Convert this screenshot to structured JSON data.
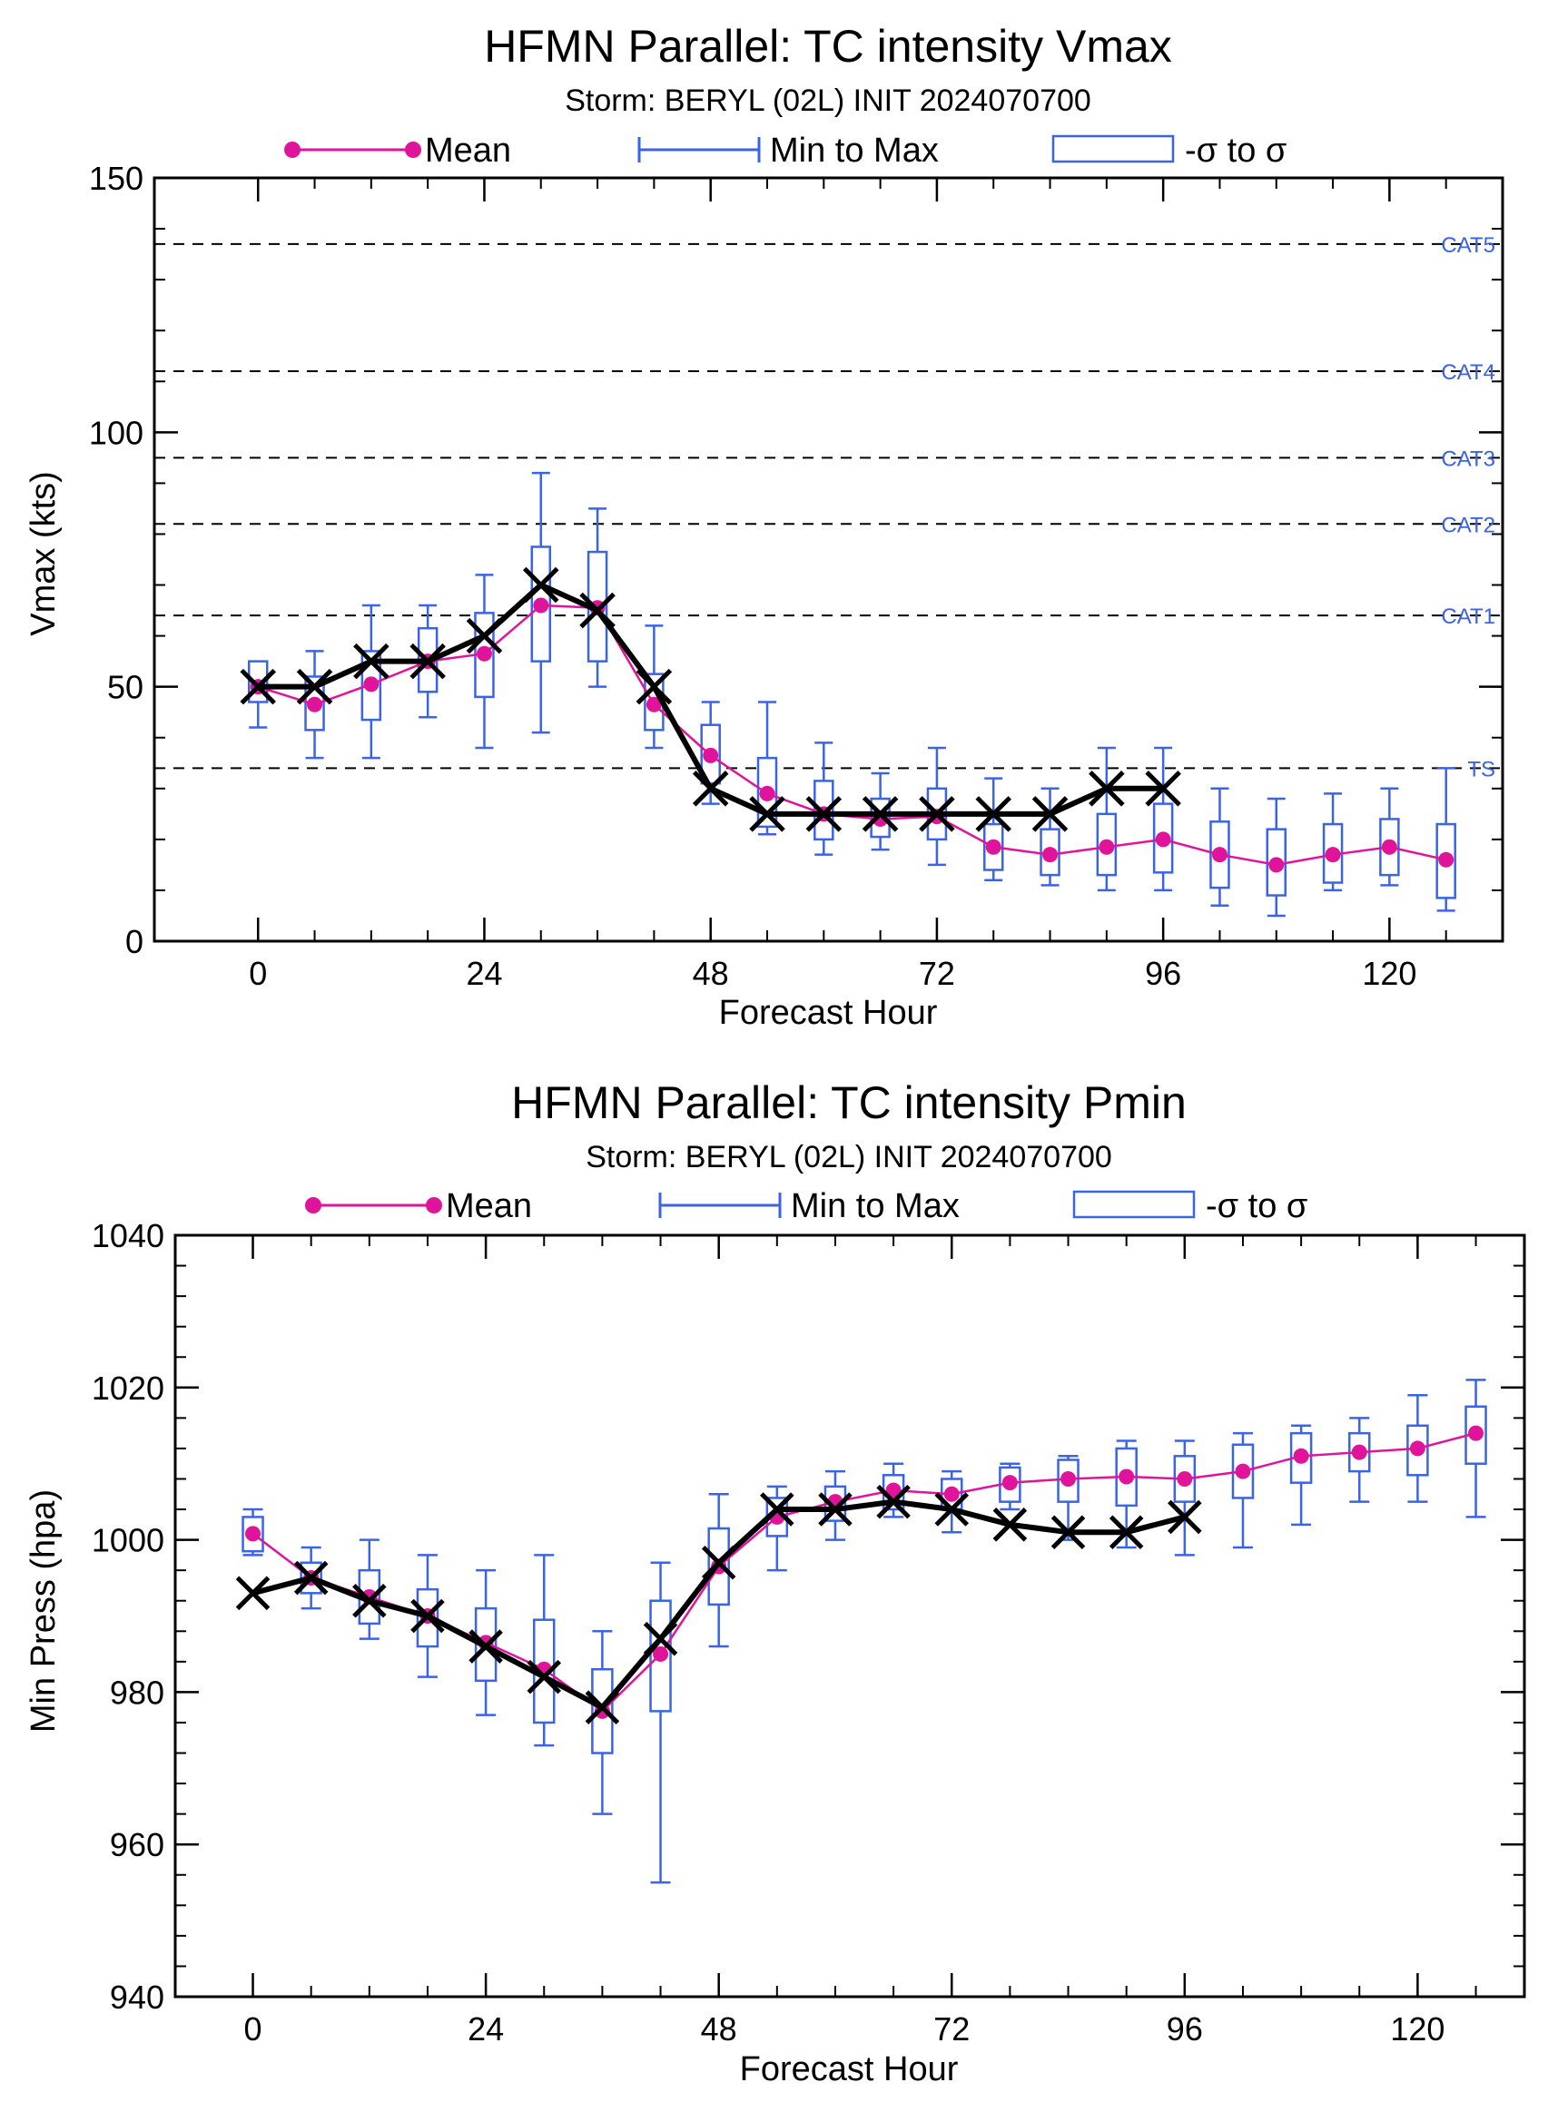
{
  "colors": {
    "mean": "#E0149B",
    "range": "#3B63E6",
    "best_track": "#000000",
    "cat_line": "#000000",
    "cat_label": "#3B63E6"
  },
  "legend": {
    "mean": "Mean",
    "minmax": "Min to Max",
    "sigma": "-σ to σ"
  },
  "chart_data": [
    {
      "type": "line",
      "title": "HFMN Parallel: TC intensity Vmax",
      "subtitle": "Storm: BERYL (02L) INIT 2024070700",
      "xlabel": "Forecast Hour",
      "ylabel": "Vmax (kts)",
      "xlim": [
        -11,
        132
      ],
      "ylim": [
        0,
        150
      ],
      "xticks": [
        0,
        24,
        48,
        72,
        96,
        120
      ],
      "yticks": [
        0,
        50,
        100,
        150
      ],
      "x_tick_labels": [
        "0",
        "24",
        "48",
        "72",
        "96",
        "120"
      ],
      "y_tick_labels": [
        "0",
        "50",
        "100",
        "150"
      ],
      "thresholds": [
        {
          "label": "TS",
          "value": 34
        },
        {
          "label": "CAT1",
          "value": 64
        },
        {
          "label": "CAT2",
          "value": 82
        },
        {
          "label": "CAT3",
          "value": 95
        },
        {
          "label": "CAT4",
          "value": 112
        },
        {
          "label": "CAT5",
          "value": 137
        }
      ],
      "x": [
        0,
        6,
        12,
        18,
        24,
        30,
        36,
        42,
        48,
        54,
        60,
        66,
        72,
        78,
        84,
        90,
        96,
        102,
        108,
        114,
        120,
        126
      ],
      "series": [
        {
          "name": "Mean",
          "values": [
            50,
            46.5,
            50.5,
            55,
            56.5,
            66,
            65.5,
            46.5,
            36.5,
            29,
            25,
            24,
            24.5,
            18.5,
            17,
            18.5,
            20,
            17,
            15,
            17,
            18.5,
            16
          ]
        },
        {
          "name": "Min to Max",
          "min": [
            42,
            36,
            36,
            44,
            38,
            41,
            50,
            38,
            27,
            21,
            17,
            18,
            15,
            12,
            11,
            10,
            10,
            7,
            5,
            10,
            11,
            6
          ],
          "max": [
            54,
            57,
            66,
            66,
            72,
            92,
            85,
            62,
            47,
            47,
            39,
            33,
            38,
            32,
            30,
            38,
            38,
            30,
            28,
            29,
            30,
            34
          ]
        },
        {
          "name": "-σ to σ",
          "low": [
            47,
            41.5,
            43.5,
            49,
            48,
            55,
            55,
            41.5,
            31,
            22.5,
            20,
            20.5,
            20,
            14,
            13,
            13,
            13.5,
            10.5,
            9,
            11.5,
            13,
            8.5
          ],
          "high": [
            55,
            52,
            57,
            61.5,
            64.5,
            77.5,
            76.5,
            52.5,
            42.5,
            36,
            31.5,
            28,
            30,
            23,
            22,
            25,
            27,
            23.5,
            22,
            23,
            24,
            23
          ]
        },
        {
          "name": "best_track",
          "values": [
            50,
            50,
            55,
            55,
            60,
            70,
            65,
            50,
            30,
            25,
            25,
            25,
            25,
            25,
            25,
            30,
            30,
            null,
            null,
            null,
            null,
            null
          ]
        }
      ]
    },
    {
      "type": "line",
      "title": "HFMN Parallel: TC intensity Pmin",
      "subtitle": "Storm: BERYL (02L) INIT 2024070700",
      "xlabel": "Forecast Hour",
      "ylabel": "Min Press (hpa)",
      "xlim": [
        -8,
        131
      ],
      "ylim": [
        940,
        1040
      ],
      "xticks": [
        0,
        24,
        48,
        72,
        96,
        120
      ],
      "yticks": [
        940,
        960,
        980,
        1000,
        1020,
        1040
      ],
      "x_tick_labels": [
        "0",
        "24",
        "48",
        "72",
        "96",
        "120"
      ],
      "y_tick_labels": [
        "940",
        "960",
        "980",
        "1000",
        "1020",
        "1040"
      ],
      "x": [
        0,
        6,
        12,
        18,
        24,
        30,
        36,
        42,
        48,
        54,
        60,
        66,
        72,
        78,
        84,
        90,
        96,
        102,
        108,
        114,
        120,
        126
      ],
      "series": [
        {
          "name": "Mean",
          "values": [
            1000.8,
            995,
            992.5,
            990,
            986.5,
            983,
            977.5,
            985,
            996.5,
            1003,
            1005,
            1006.5,
            1006,
            1007.5,
            1008,
            1008.3,
            1008,
            1009,
            1011,
            1011.5,
            1012,
            1014
          ]
        },
        {
          "name": "Min to Max",
          "min": [
            998,
            991,
            987,
            982,
            977,
            973,
            964,
            955,
            986,
            996,
            1000,
            1003,
            1001,
            1004,
            1000,
            999,
            998,
            999,
            1002,
            1005,
            1005,
            1003
          ],
          "max": [
            1004,
            999,
            1000,
            998,
            996,
            998,
            988,
            997,
            1006,
            1007,
            1009,
            1010,
            1009,
            1010,
            1011,
            1013,
            1013,
            1014,
            1015,
            1016,
            1019,
            1021
          ]
        },
        {
          "name": "-σ to σ",
          "low": [
            998.5,
            993,
            989,
            986,
            981.5,
            976,
            972,
            977.5,
            991.5,
            1000.5,
            1002.5,
            1004,
            1004,
            1005,
            1005,
            1004.5,
            1005,
            1005.5,
            1007.5,
            1009,
            1008.5,
            1010
          ],
          "high": [
            1003,
            997,
            996,
            993.5,
            991,
            989.5,
            983,
            992,
            1001.5,
            1005.5,
            1007,
            1008.5,
            1008,
            1009.5,
            1010.5,
            1012,
            1011,
            1012.5,
            1014,
            1014,
            1015,
            1017.5
          ]
        },
        {
          "name": "best_track",
          "values": [
            993,
            995,
            992,
            990,
            986,
            982,
            978,
            987,
            997,
            1004,
            1004,
            1005,
            1004,
            1002,
            1001,
            1001,
            1003,
            null,
            null,
            null,
            null,
            null
          ]
        }
      ]
    }
  ]
}
